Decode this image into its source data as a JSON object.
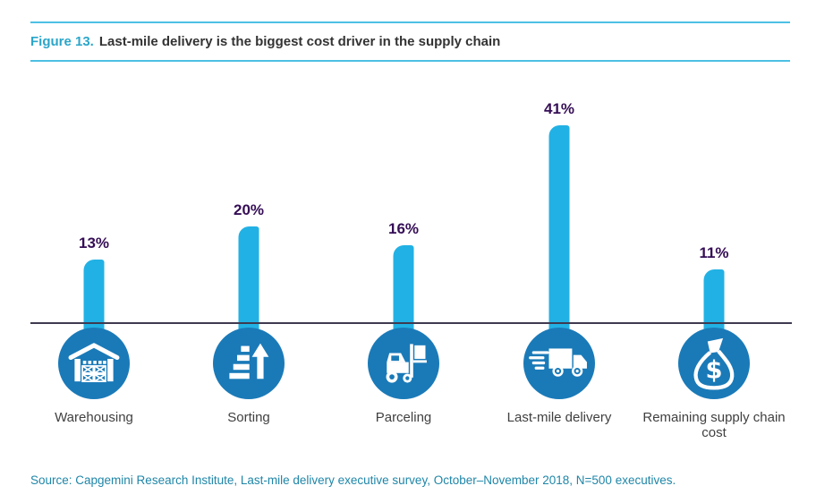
{
  "figure": {
    "label": "Figure 13.",
    "title": "Last-mile delivery is the biggest cost driver in the supply chain"
  },
  "source": "Source: Capgemini Research Institute, Last-mile delivery executive survey, October–November 2018, N=500 executives.",
  "colors": {
    "bar": "#22B1E4",
    "icon_circle": "#1A7AB8",
    "accent_rule": "#4CC0E4",
    "figure_label": "#2BA6C9",
    "title_text": "#333333",
    "value_label": "#350E56",
    "axis_line": "#3F3A50",
    "source_text": "#1F86A8",
    "category_text": "#404040"
  },
  "chart_data": {
    "type": "bar",
    "title": "Last-mile delivery is the biggest cost driver in the supply chain",
    "categories": [
      "Warehousing",
      "Sorting",
      "Parceling",
      "Last-mile delivery",
      "Remaining supply chain cost"
    ],
    "values": [
      13,
      20,
      16,
      41,
      11
    ],
    "value_labels": [
      "13%",
      "20%",
      "16%",
      "41%",
      "11%"
    ],
    "unit": "percent",
    "icons": [
      "warehouse-icon",
      "sorting-icon",
      "forklift-icon",
      "delivery-truck-icon",
      "money-bag-icon"
    ],
    "xlabel": "",
    "ylabel": "",
    "ylim": [
      0,
      45
    ],
    "grid": false,
    "legend": false,
    "bar_color": "#22B1E4"
  }
}
